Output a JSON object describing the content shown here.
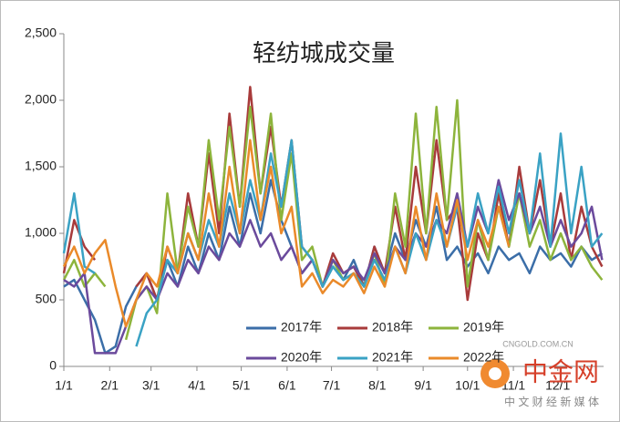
{
  "chart_data": {
    "type": "line",
    "title": "轻纺城成交量",
    "x": [
      0,
      7,
      14,
      21,
      28,
      35,
      42,
      49,
      56,
      63,
      70,
      77,
      84,
      91,
      98,
      105,
      112,
      119,
      126,
      133,
      140,
      147,
      154,
      161,
      168,
      175,
      182,
      189,
      196,
      203,
      210,
      217,
      224,
      231,
      238,
      245,
      252,
      259,
      266,
      273,
      280,
      287,
      294,
      301,
      308,
      315,
      322,
      329,
      336,
      343,
      350,
      357,
      364
    ],
    "xlim": [
      0,
      365
    ],
    "xticks": [
      {
        "value": 0,
        "label": "1/1"
      },
      {
        "value": 31,
        "label": "2/1"
      },
      {
        "value": 59,
        "label": "3/1"
      },
      {
        "value": 90,
        "label": "4/1"
      },
      {
        "value": 120,
        "label": "5/1"
      },
      {
        "value": 151,
        "label": "6/1"
      },
      {
        "value": 181,
        "label": "7/1"
      },
      {
        "value": 212,
        "label": "8/1"
      },
      {
        "value": 243,
        "label": "9/1"
      },
      {
        "value": 273,
        "label": "10/1"
      },
      {
        "value": 304,
        "label": "11/1"
      },
      {
        "value": 334,
        "label": "12/1"
      }
    ],
    "ylim": [
      0,
      2500
    ],
    "yticks": [
      0,
      500,
      {
        "value": 1000,
        "label": "1,000"
      },
      {
        "value": 1500,
        "label": "1,500"
      },
      {
        "value": 2000,
        "label": "2,000"
      },
      {
        "value": 2500,
        "label": "2,500"
      }
    ],
    "legend": "lower center",
    "series": [
      {
        "name": "2017年",
        "color": "#3b6ea8",
        "values": [
          600,
          650,
          500,
          350,
          100,
          150,
          450,
          600,
          700,
          500,
          800,
          600,
          900,
          700,
          1000,
          800,
          1200,
          900,
          1300,
          1000,
          1400,
          1100,
          900,
          700,
          800,
          600,
          750,
          650,
          800,
          600,
          900,
          700,
          1000,
          800,
          1100,
          900,
          1200,
          800,
          900,
          750,
          850,
          700,
          900,
          800,
          850,
          700,
          900,
          800,
          850,
          750,
          900,
          800,
          850
        ]
      },
      {
        "name": "2018年",
        "color": "#a83b3b",
        "values": [
          700,
          1100,
          900,
          800,
          null,
          null,
          null,
          600,
          700,
          500,
          900,
          700,
          1300,
          900,
          1600,
          1000,
          1900,
          1200,
          2100,
          1300,
          1800,
          1200,
          1700,
          900,
          800,
          600,
          850,
          700,
          750,
          600,
          900,
          700,
          1200,
          800,
          1500,
          1000,
          1700,
          1100,
          1200,
          500,
          1000,
          800,
          1300,
          900,
          1500,
          1000,
          1400,
          900,
          1300,
          800,
          1200,
          900,
          750
        ]
      },
      {
        "name": "2019年",
        "color": "#8db43c",
        "values": [
          650,
          800,
          600,
          700,
          600,
          null,
          200,
          500,
          600,
          400,
          1300,
          700,
          1200,
          900,
          1700,
          1100,
          1800,
          1200,
          1950,
          1300,
          1900,
          1100,
          1600,
          800,
          900,
          600,
          800,
          650,
          700,
          600,
          850,
          600,
          1300,
          900,
          1900,
          1000,
          1950,
          1100,
          2000,
          600,
          1100,
          800,
          1200,
          900,
          1300,
          900,
          1100,
          800,
          1000,
          800,
          900,
          750,
          650
        ]
      },
      {
        "name": "2020年",
        "color": "#6b4a9c",
        "values": [
          650,
          600,
          700,
          100,
          100,
          100,
          300,
          500,
          600,
          500,
          700,
          600,
          800,
          700,
          900,
          800,
          1000,
          900,
          1100,
          900,
          1000,
          800,
          900,
          700,
          800,
          600,
          800,
          700,
          750,
          650,
          850,
          700,
          900,
          800,
          1000,
          900,
          1100,
          1000,
          1300,
          900,
          1200,
          1000,
          1400,
          1100,
          1300,
          1000,
          1200,
          900,
          1100,
          900,
          1000,
          1200,
          800
        ]
      },
      {
        "name": "2021年",
        "color": "#3aa2c4",
        "values": [
          850,
          1300,
          750,
          700,
          null,
          null,
          null,
          150,
          400,
          500,
          800,
          700,
          1000,
          800,
          1100,
          900,
          1300,
          1000,
          1400,
          1100,
          1600,
          1200,
          1700,
          900,
          800,
          600,
          750,
          650,
          700,
          600,
          800,
          650,
          900,
          700,
          1000,
          800,
          1100,
          900,
          1200,
          900,
          1300,
          1000,
          1350,
          1000,
          1400,
          1000,
          1600,
          900,
          1750,
          1000,
          1500,
          900,
          1000
        ]
      },
      {
        "name": "2022年",
        "color": "#ea8a2a",
        "values": [
          750,
          900,
          700,
          850,
          950,
          600,
          300,
          500,
          700,
          600,
          900,
          700,
          1000,
          800,
          1300,
          900,
          1500,
          1000,
          1700,
          1100,
          1500,
          1000,
          1200,
          600,
          700,
          550,
          650,
          600,
          700,
          550,
          750,
          600,
          900,
          700,
          1200,
          800,
          1300,
          900,
          1250,
          800,
          1100,
          900,
          1200,
          900,
          null,
          null,
          null,
          null,
          null,
          null,
          null,
          null,
          null
        ]
      }
    ],
    "watermarks": [
      "中金网",
      "CNGOLD.COM.CN",
      "中 文 财 经 新 媒 体"
    ]
  }
}
